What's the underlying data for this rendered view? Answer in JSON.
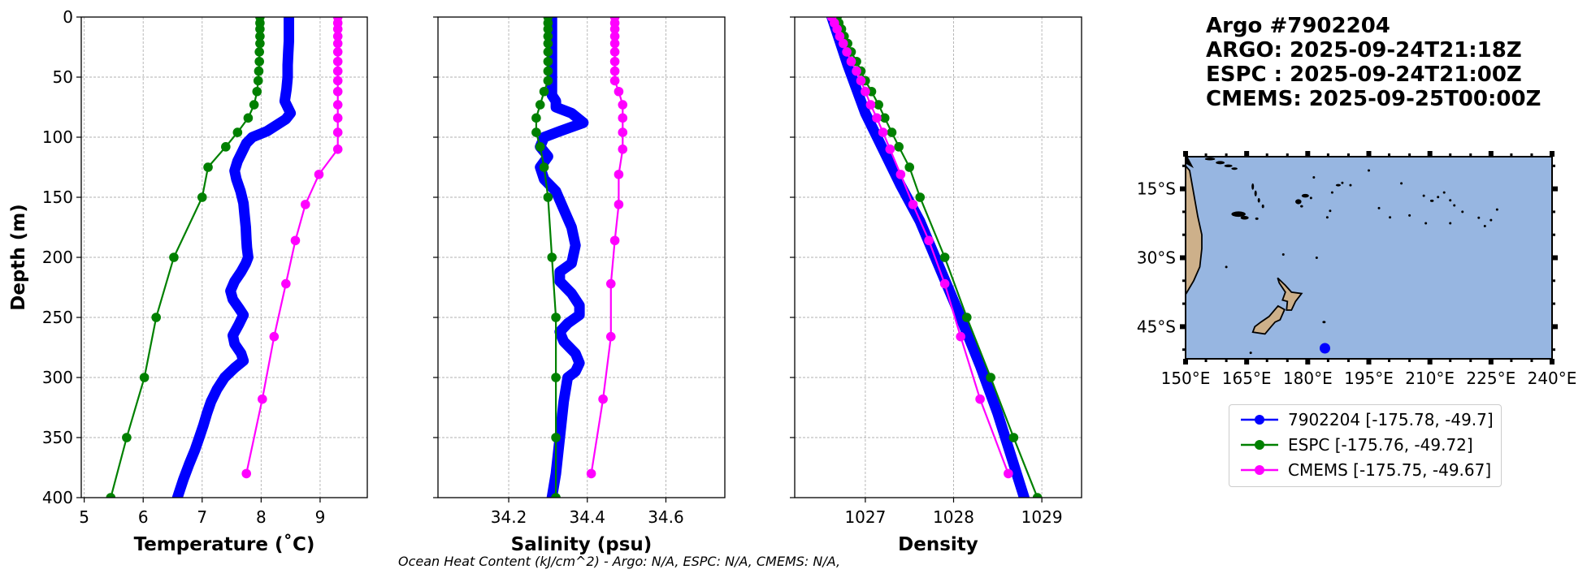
{
  "title": {
    "line1": "Argo #7902204",
    "line2": "ARGO: 2025-09-24T21:18Z",
    "line3": "ESPC : 2025-09-24T21:00Z",
    "line4": "CMEMS: 2025-09-25T00:00Z"
  },
  "footer": "Ocean Heat Content (kJ/cm^2) - Argo: N/A,  ESPC: N/A,  CMEMS: N/A,",
  "colors": {
    "argo": "#0000ff",
    "espc": "#008000",
    "cmems": "#ff00ff",
    "ocean": "#97b6e1",
    "land": "#cdb08a"
  },
  "chart_data": [
    {
      "type": "line",
      "xlabel": "Temperature (˚C)",
      "ylabel": "Depth (m)",
      "xlim": [
        4.95,
        9.8
      ],
      "ylim": [
        400,
        0
      ],
      "xticks": [
        5,
        6,
        7,
        8,
        9
      ],
      "xtick_labels": [
        "5",
        "6",
        "7",
        "8",
        "9"
      ],
      "yticks": [
        0,
        50,
        100,
        150,
        200,
        250,
        300,
        350,
        400
      ],
      "ytick_labels": [
        "0",
        "50",
        "100",
        "150",
        "200",
        "250",
        "300",
        "350",
        "400"
      ],
      "grid": true,
      "series": [
        {
          "name": "Argo",
          "color": "#0000ff",
          "style": "thick",
          "x": [
            8.47,
            8.47,
            8.47,
            8.46,
            8.45,
            8.45,
            8.43,
            8.4,
            8.5,
            8.42,
            8.1,
            7.85,
            7.75,
            7.68,
            7.6,
            7.55,
            7.58,
            7.65,
            7.7,
            7.72,
            7.74,
            7.75,
            7.76,
            7.78,
            7.74,
            7.66,
            7.55,
            7.48,
            7.52,
            7.62,
            7.7,
            7.62,
            7.52,
            7.55,
            7.66,
            7.7,
            7.55,
            7.38,
            7.25,
            7.15,
            7.08,
            7.02,
            6.95,
            6.88,
            6.78,
            6.68,
            6.58
          ],
          "y": [
            0,
            10,
            20,
            30,
            40,
            50,
            60,
            70,
            80,
            85,
            95,
            100,
            105,
            112,
            120,
            128,
            135,
            145,
            155,
            165,
            175,
            185,
            192,
            200,
            205,
            212,
            220,
            228,
            235,
            242,
            248,
            256,
            265,
            272,
            280,
            286,
            292,
            300,
            310,
            320,
            330,
            340,
            350,
            360,
            372,
            385,
            400
          ]
        },
        {
          "name": "ESPC",
          "color": "#008000",
          "style": "marker",
          "x": [
            7.98,
            7.98,
            7.98,
            7.98,
            7.98,
            7.97,
            7.97,
            7.96,
            7.95,
            7.93,
            7.88,
            7.78,
            7.6,
            7.4,
            7.1,
            7.0,
            6.52,
            6.22,
            6.02,
            5.72,
            5.45
          ],
          "y": [
            0,
            5,
            10,
            16,
            22,
            29,
            37,
            45,
            53,
            62,
            73,
            84,
            96,
            108,
            125,
            150,
            200,
            250,
            300,
            350,
            400
          ]
        },
        {
          "name": "CMEMS",
          "color": "#ff00ff",
          "style": "marker",
          "x": [
            9.3,
            9.3,
            9.3,
            9.3,
            9.3,
            9.3,
            9.3,
            9.3,
            9.3,
            9.3,
            9.3,
            9.3,
            9.3,
            9.3,
            8.98,
            8.75,
            8.58,
            8.42,
            8.22,
            8.02,
            7.75
          ],
          "y": [
            0,
            5,
            10,
            16,
            22,
            29,
            37,
            45,
            53,
            62,
            73,
            84,
            96,
            110,
            131,
            156,
            186,
            222,
            266,
            318,
            380
          ]
        }
      ]
    },
    {
      "type": "line",
      "xlabel": "Salinity (psu)",
      "xlim": [
        34.02,
        34.75
      ],
      "ylim": [
        400,
        0
      ],
      "xticks": [
        34.2,
        34.4,
        34.6
      ],
      "xtick_labels": [
        "34.2",
        "34.4",
        "34.6"
      ],
      "yticks": [
        0,
        50,
        100,
        150,
        200,
        250,
        300,
        350,
        400
      ],
      "grid": true,
      "series": [
        {
          "name": "Argo",
          "color": "#0000ff",
          "style": "thick",
          "x": [
            34.31,
            34.31,
            34.31,
            34.31,
            34.31,
            34.31,
            34.32,
            34.32,
            34.36,
            34.39,
            34.33,
            34.29,
            34.28,
            34.3,
            34.28,
            34.29,
            34.32,
            34.34,
            34.36,
            34.37,
            34.36,
            34.33,
            34.33,
            34.36,
            34.38,
            34.38,
            34.35,
            34.33,
            34.34,
            34.37,
            34.38,
            34.37,
            34.35,
            34.34,
            34.33,
            34.32,
            34.31
          ],
          "y": [
            0,
            15,
            30,
            45,
            60,
            65,
            70,
            75,
            80,
            88,
            95,
            100,
            108,
            116,
            125,
            135,
            145,
            160,
            175,
            190,
            205,
            212,
            220,
            230,
            240,
            248,
            255,
            262,
            270,
            280,
            288,
            295,
            300,
            320,
            350,
            380,
            400
          ]
        },
        {
          "name": "ESPC",
          "color": "#008000",
          "style": "marker",
          "x": [
            34.3,
            34.3,
            34.3,
            34.3,
            34.3,
            34.3,
            34.3,
            34.3,
            34.3,
            34.29,
            34.28,
            34.27,
            34.27,
            34.28,
            34.29,
            34.3,
            34.31,
            34.32,
            34.32,
            34.32,
            34.32
          ],
          "y": [
            0,
            5,
            10,
            16,
            22,
            29,
            37,
            45,
            53,
            62,
            73,
            84,
            96,
            108,
            125,
            150,
            200,
            250,
            300,
            350,
            400
          ]
        },
        {
          "name": "CMEMS",
          "color": "#ff00ff",
          "style": "marker",
          "x": [
            34.47,
            34.47,
            34.47,
            34.47,
            34.47,
            34.47,
            34.47,
            34.47,
            34.47,
            34.48,
            34.49,
            34.49,
            34.49,
            34.49,
            34.48,
            34.48,
            34.47,
            34.46,
            34.46,
            34.44,
            34.41
          ],
          "y": [
            0,
            5,
            10,
            16,
            22,
            29,
            37,
            45,
            53,
            62,
            73,
            84,
            96,
            110,
            131,
            156,
            186,
            222,
            266,
            318,
            380
          ]
        }
      ]
    },
    {
      "type": "line",
      "xlabel": "Density",
      "xlim": [
        1026.2,
        1029.45
      ],
      "ylim": [
        400,
        0
      ],
      "xticks": [
        1027,
        1028,
        1029
      ],
      "xtick_labels": [
        "1027",
        "1028",
        "1029"
      ],
      "yticks": [
        0,
        50,
        100,
        150,
        200,
        250,
        300,
        350,
        400
      ],
      "grid": true,
      "series": [
        {
          "name": "Argo",
          "color": "#0000ff",
          "style": "thick",
          "x": [
            1026.62,
            1026.8,
            1027.0,
            1027.2,
            1027.4,
            1027.62,
            1027.85,
            1028.08,
            1028.3,
            1028.5,
            1028.65,
            1028.8
          ],
          "y": [
            0,
            40,
            80,
            110,
            140,
            170,
            210,
            250,
            290,
            330,
            365,
            400
          ]
        },
        {
          "name": "ESPC",
          "color": "#008000",
          "style": "marker",
          "x": [
            1026.68,
            1026.7,
            1026.73,
            1026.76,
            1026.8,
            1026.84,
            1026.9,
            1026.95,
            1027.0,
            1027.07,
            1027.15,
            1027.22,
            1027.3,
            1027.38,
            1027.5,
            1027.62,
            1027.9,
            1028.15,
            1028.42,
            1028.68,
            1028.95
          ],
          "y": [
            0,
            5,
            10,
            16,
            22,
            29,
            37,
            45,
            53,
            62,
            73,
            84,
            96,
            108,
            125,
            150,
            200,
            250,
            300,
            350,
            400
          ]
        },
        {
          "name": "CMEMS",
          "color": "#ff00ff",
          "style": "marker",
          "x": [
            1026.62,
            1026.65,
            1026.68,
            1026.71,
            1026.75,
            1026.79,
            1026.84,
            1026.9,
            1026.95,
            1027.0,
            1027.06,
            1027.13,
            1027.2,
            1027.28,
            1027.4,
            1027.54,
            1027.72,
            1027.9,
            1028.08,
            1028.3,
            1028.62
          ],
          "y": [
            0,
            5,
            10,
            16,
            22,
            29,
            37,
            45,
            53,
            62,
            73,
            84,
            96,
            110,
            131,
            156,
            186,
            222,
            266,
            318,
            380
          ]
        }
      ]
    }
  ],
  "map": {
    "lon_range": [
      150,
      240
    ],
    "lat_range": [
      -52,
      -8
    ],
    "xtick_labels": [
      "150°E",
      "165°E",
      "180°E",
      "195°E",
      "210°E",
      "225°E",
      "240°E"
    ],
    "ytick_labels": [
      "15°S",
      "30°S",
      "45°S"
    ],
    "float_position": {
      "lon": 184.22,
      "lat": -49.7
    }
  },
  "legend": [
    {
      "label": "7902204 [-175.78, -49.7]",
      "color": "#0000ff"
    },
    {
      "label": "ESPC [-175.76, -49.72]",
      "color": "#008000"
    },
    {
      "label": "CMEMS [-175.75, -49.67]",
      "color": "#ff00ff"
    }
  ]
}
